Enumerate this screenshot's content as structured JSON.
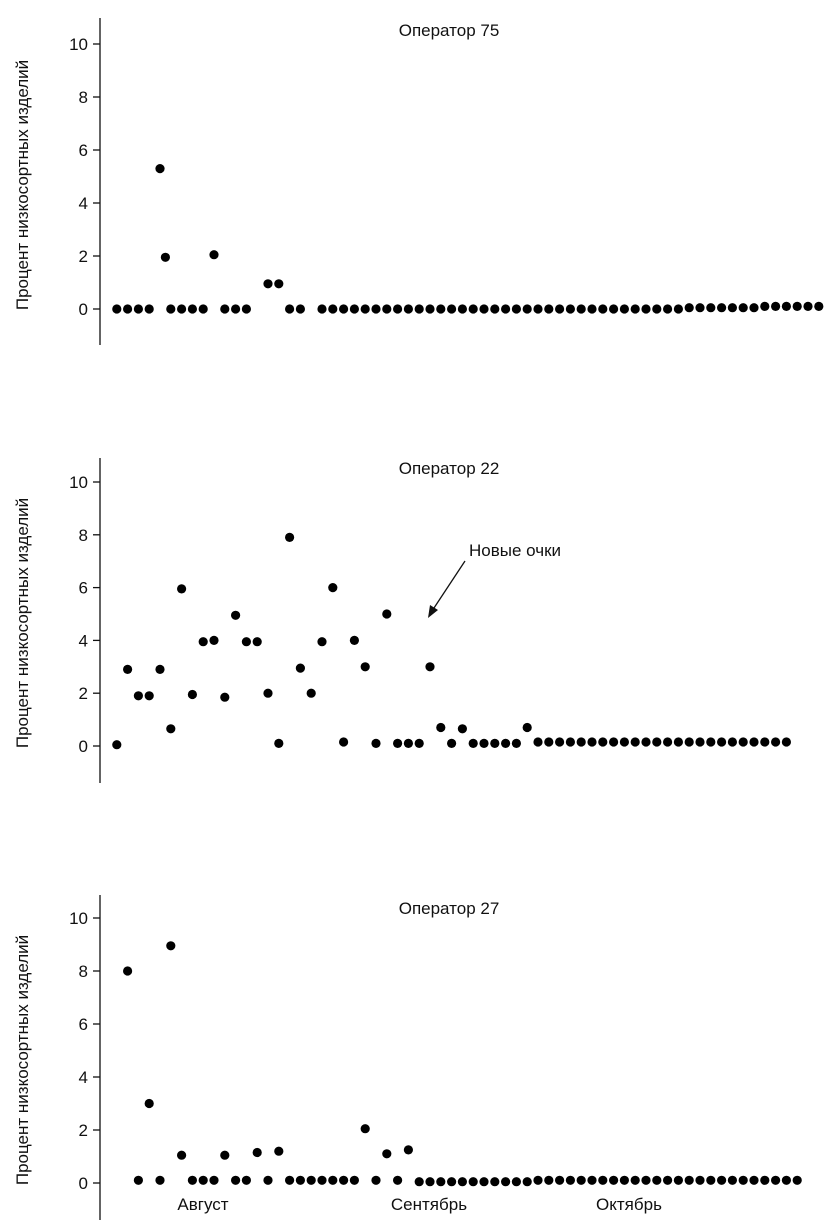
{
  "chart_data": [
    {
      "type": "scatter",
      "title": "Оператор 75",
      "ylabel": "Процент низкосортных изделий",
      "ylim": [
        -1.4,
        11
      ],
      "yticks": [
        0,
        2,
        4,
        6,
        8,
        10
      ],
      "xlim": [
        0,
        70
      ],
      "series": [
        {
          "x": [
            1,
            2,
            3,
            4,
            5,
            5.5,
            6,
            7,
            8,
            9,
            10,
            11,
            12,
            13,
            15,
            16,
            17,
            18,
            20,
            21,
            22,
            23,
            24,
            25,
            26,
            27,
            28,
            29,
            30,
            31,
            32,
            33,
            34,
            35,
            36,
            37,
            38,
            39,
            40,
            41,
            42,
            43,
            44,
            45,
            46,
            47,
            48,
            49,
            50,
            51,
            52,
            53,
            54,
            55,
            56,
            57,
            58,
            59,
            60,
            61,
            62,
            63,
            64,
            65,
            66,
            67,
            68,
            69,
            70
          ],
          "values": [
            0,
            0,
            0,
            0,
            5.3,
            1.95,
            0,
            0,
            0,
            0,
            2.05,
            0,
            0,
            0,
            0.95,
            0.95,
            0,
            0,
            0,
            0,
            0,
            0,
            0,
            0,
            0,
            0,
            0,
            0,
            0,
            0,
            0,
            0,
            0,
            0,
            0,
            0,
            0,
            0,
            0,
            0,
            0,
            0,
            0,
            0,
            0,
            0,
            0,
            0,
            0,
            0,
            0,
            0,
            0.05,
            0.05,
            0.05,
            0.05,
            0.05,
            0.05,
            0.05,
            0.1,
            0.1,
            0.1,
            0.1,
            0.1,
            0.1,
            0.1,
            0.15,
            0.15,
            0.15
          ]
        }
      ]
    },
    {
      "type": "scatter",
      "title": "Оператор 22",
      "ylabel": "Процент низкосортных изделий",
      "ylim": [
        -1.4,
        11
      ],
      "yticks": [
        0,
        2,
        4,
        6,
        8,
        10
      ],
      "xlim": [
        0,
        70
      ],
      "annotation": {
        "text": "Новые очки",
        "x": 30.2,
        "y": 5.0
      },
      "series": [
        {
          "x": [
            1,
            2,
            3,
            4,
            5,
            6,
            7,
            8,
            9,
            10,
            11,
            12,
            13,
            14,
            15,
            16,
            17,
            18,
            19,
            20,
            21,
            22,
            23,
            24,
            25,
            26,
            27,
            28,
            29,
            30,
            31,
            32,
            33,
            34,
            35,
            36,
            37,
            38,
            39,
            40,
            41,
            42,
            43,
            44,
            45,
            46,
            47,
            48,
            49,
            50,
            51,
            52,
            53,
            54,
            55,
            56,
            57,
            58,
            59,
            60,
            61,
            62,
            63
          ],
          "values": [
            0.05,
            2.9,
            1.9,
            1.9,
            2.9,
            0.65,
            5.95,
            1.95,
            3.95,
            4.0,
            1.85,
            4.95,
            3.95,
            3.95,
            2.0,
            0.1,
            7.9,
            2.95,
            2.0,
            3.95,
            6.0,
            0.15,
            4.0,
            3.0,
            0.1,
            5.0,
            0.1,
            0.1,
            0.1,
            3.0,
            0.7,
            0.1,
            0.65,
            0.1,
            0.1,
            0.1,
            0.1,
            0.1,
            0.7,
            0.15,
            0.15,
            0.15,
            0.15,
            0.15,
            0.15,
            0.15,
            0.15,
            0.15,
            0.15,
            0.15,
            0.15,
            0.15,
            0.15,
            0.15,
            0.15,
            0.15,
            0.15,
            0.15,
            0.15,
            0.15,
            0.15,
            0.15,
            0.15
          ]
        }
      ]
    },
    {
      "type": "scatter",
      "title": "Оператор 27",
      "ylabel": "Процент низкосортных изделий",
      "ylim": [
        -1.4,
        11
      ],
      "yticks": [
        0,
        2,
        4,
        6,
        8,
        10
      ],
      "xlim": [
        0,
        70
      ],
      "categories": [
        "Август",
        "Сентябрь",
        "Октябрь"
      ],
      "series": [
        {
          "x": [
            2,
            3,
            4,
            5,
            6,
            7,
            8,
            9,
            10,
            11,
            12,
            13,
            14,
            15,
            16,
            17,
            18,
            19,
            20,
            21,
            22,
            23,
            24,
            25,
            26,
            27,
            28,
            29,
            30,
            31,
            32,
            33,
            34,
            35,
            36,
            37,
            38,
            39,
            40,
            41,
            42,
            43,
            44,
            45,
            46,
            47,
            48,
            49,
            50,
            51,
            52,
            53,
            54,
            55,
            56,
            57,
            58,
            59,
            60,
            61,
            62,
            63,
            64
          ],
          "values": [
            8.0,
            0.1,
            3.0,
            0.1,
            8.95,
            1.05,
            0.1,
            0.1,
            0.1,
            1.05,
            0.1,
            0.1,
            1.15,
            0.1,
            1.2,
            0.1,
            0.1,
            0.1,
            0.1,
            0.1,
            0.1,
            0.1,
            2.05,
            0.1,
            1.1,
            0.1,
            1.25,
            0.05,
            0.05,
            0.05,
            0.05,
            0.05,
            0.05,
            0.05,
            0.05,
            0.05,
            0.05,
            0.05,
            0.1,
            0.1,
            0.1,
            0.1,
            0.1,
            0.1,
            0.1,
            0.1,
            0.1,
            0.1,
            0.1,
            0.1,
            0.1,
            0.1,
            0.1,
            0.1,
            0.1,
            0.1,
            0.1,
            0.1,
            0.1,
            0.1,
            0.1,
            0.1,
            0.1
          ]
        }
      ]
    }
  ]
}
